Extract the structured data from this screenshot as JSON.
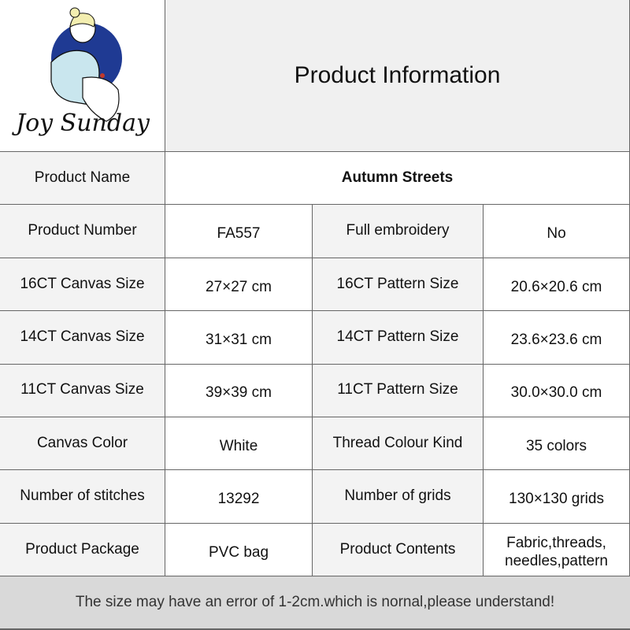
{
  "logo": {
    "brand_text": "Joy Sunday",
    "colors": {
      "circle": "#1f3a93",
      "dress": "#c9e6ee",
      "hair": "#f3eeb0"
    }
  },
  "title": "Product Information",
  "product_name": {
    "label": "Product Name",
    "value": "Autumn Streets"
  },
  "rows": [
    {
      "l1": "Product Number",
      "v1": "FA557",
      "l2": "Full embroidery",
      "v2": "No"
    },
    {
      "l1": "16CT Canvas Size",
      "v1": "27×27 cm",
      "l2": "16CT Pattern Size",
      "v2": "20.6×20.6 cm"
    },
    {
      "l1": "14CT Canvas Size",
      "v1": "31×31 cm",
      "l2": "14CT Pattern Size",
      "v2": "23.6×23.6 cm"
    },
    {
      "l1": "11CT Canvas Size",
      "v1": "39×39 cm",
      "l2": "11CT Pattern Size",
      "v2": "30.0×30.0 cm"
    },
    {
      "l1": "Canvas Color",
      "v1": "White",
      "l2": "Thread Colour Kind",
      "v2": "35 colors"
    },
    {
      "l1": "Number of stitches",
      "v1": "13292",
      "l2": "Number of grids",
      "v2": "130×130 grids"
    },
    {
      "l1": "Product Package",
      "v1": "PVC bag",
      "l2": "Product Contents",
      "v2": "Fabric,threads, needles,pattern"
    }
  ],
  "footer": "The size may have an error of 1-2cm.which is nornal,please understand!"
}
